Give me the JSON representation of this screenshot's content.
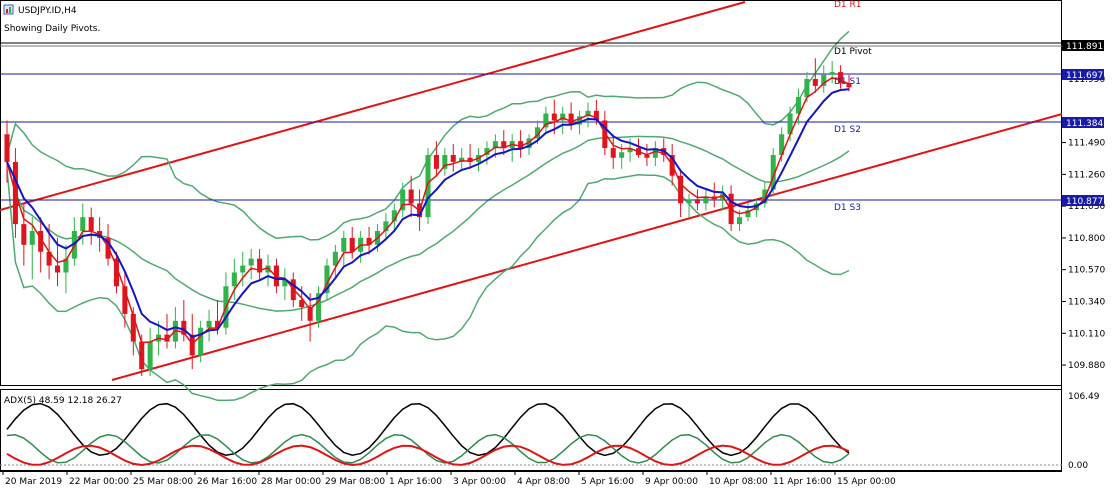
{
  "window": {
    "symbol_title": "USDJPY.ID,H4",
    "indicator_note": "Showing Daily Pivots.",
    "icon": "chart-window-icon"
  },
  "pivot_labels": {
    "top_partial": "D1 R1",
    "pivot": "D1 Pivot",
    "s1": "D1 S1",
    "s2": "D1 S2",
    "s3": "D1 S3"
  },
  "price_scale": {
    "labels": [
      "111.950",
      "111.490",
      "111.260",
      "111.030",
      "110.800",
      "110.570",
      "110.340",
      "110.110",
      "109.880"
    ],
    "current_price": "111.891",
    "pivot_tags": {
      "s1": "111.697",
      "s2": "111.384",
      "s3": "110.877"
    },
    "range": [
      109.75,
      112.5
    ]
  },
  "time_axis": {
    "labels": [
      "20 Mar 2019",
      "22 Mar 00:00",
      "25 Mar 08:00",
      "26 Mar 16:00",
      "28 Mar 00:00",
      "29 Mar 08:00",
      "1 Apr 16:00",
      "3 Apr 00:00",
      "4 Apr 08:00",
      "5 Apr 16:00",
      "9 Apr 00:00",
      "10 Apr 08:00",
      "11 Apr 16:00",
      "15 Apr 00:00"
    ]
  },
  "adx_panel": {
    "label": "ADX(5) 48.59 12.18 26.27",
    "scale_top": "106.49",
    "scale_bottom": "0.00",
    "range": [
      0,
      106.49
    ]
  },
  "colors": {
    "bull_candle": "#2fb34a",
    "bear_candle": "#e0141c",
    "channel": "#e01414",
    "bollinger": "#4faa72",
    "ma_fast": "#e01414",
    "ma_slow": "#1515c8",
    "pivot_line": "#1a1aa8",
    "price_tag_bg": "#1a1aa8",
    "current_tag_bg": "#000000",
    "adx_line": "#000000",
    "plus_di": "#2f8a4f",
    "minus_di": "#e01414"
  },
  "chart_data": {
    "type": "candlestick",
    "symbol": "USDJPY.ID",
    "timeframe": "H4",
    "candles": [
      [
        111.55,
        111.65,
        111.2,
        111.35
      ],
      [
        111.35,
        111.45,
        110.8,
        110.9
      ],
      [
        110.9,
        111.05,
        110.6,
        110.75
      ],
      [
        110.75,
        110.95,
        110.5,
        110.85
      ],
      [
        110.85,
        110.95,
        110.55,
        110.7
      ],
      [
        110.7,
        110.9,
        110.5,
        110.6
      ],
      [
        110.6,
        110.8,
        110.45,
        110.55
      ],
      [
        110.55,
        110.75,
        110.4,
        110.65
      ],
      [
        110.65,
        110.95,
        110.6,
        110.85
      ],
      [
        110.85,
        111.05,
        110.75,
        110.95
      ],
      [
        110.95,
        111.02,
        110.75,
        110.85
      ],
      [
        110.85,
        110.95,
        110.7,
        110.8
      ],
      [
        110.8,
        110.9,
        110.6,
        110.65
      ],
      [
        110.65,
        110.7,
        110.4,
        110.45
      ],
      [
        110.45,
        110.55,
        110.15,
        110.25
      ],
      [
        110.25,
        110.3,
        109.95,
        110.05
      ],
      [
        110.05,
        110.1,
        109.8,
        109.85
      ],
      [
        109.85,
        110.15,
        109.8,
        110.05
      ],
      [
        110.05,
        110.2,
        109.95,
        110.1
      ],
      [
        110.1,
        110.25,
        110.0,
        110.05
      ],
      [
        110.05,
        110.3,
        110.0,
        110.2
      ],
      [
        110.2,
        110.35,
        110.05,
        110.1
      ],
      [
        110.1,
        110.25,
        109.85,
        109.95
      ],
      [
        109.95,
        110.2,
        109.9,
        110.15
      ],
      [
        110.15,
        110.28,
        110.05,
        110.2
      ],
      [
        110.2,
        110.35,
        110.1,
        110.15
      ],
      [
        110.15,
        110.55,
        110.1,
        110.45
      ],
      [
        110.45,
        110.65,
        110.35,
        110.55
      ],
      [
        110.55,
        110.7,
        110.45,
        110.6
      ],
      [
        110.6,
        110.72,
        110.5,
        110.65
      ],
      [
        110.65,
        110.72,
        110.5,
        110.55
      ],
      [
        110.55,
        110.68,
        110.45,
        110.6
      ],
      [
        110.6,
        110.65,
        110.4,
        110.45
      ],
      [
        110.45,
        110.58,
        110.35,
        110.5
      ],
      [
        110.5,
        110.55,
        110.3,
        110.35
      ],
      [
        110.35,
        110.45,
        110.2,
        110.3
      ],
      [
        110.3,
        110.4,
        110.05,
        110.2
      ],
      [
        110.2,
        110.45,
        110.15,
        110.4
      ],
      [
        110.4,
        110.65,
        110.35,
        110.6
      ],
      [
        110.6,
        110.75,
        110.5,
        110.7
      ],
      [
        110.7,
        110.85,
        110.6,
        110.8
      ],
      [
        110.8,
        110.88,
        110.65,
        110.7
      ],
      [
        110.7,
        110.85,
        110.62,
        110.8
      ],
      [
        110.8,
        110.88,
        110.68,
        110.75
      ],
      [
        110.75,
        110.9,
        110.7,
        110.85
      ],
      [
        110.85,
        110.98,
        110.78,
        110.92
      ],
      [
        110.92,
        111.05,
        110.85,
        111.0
      ],
      [
        111.0,
        111.2,
        110.95,
        111.15
      ],
      [
        111.15,
        111.25,
        110.95,
        111.05
      ],
      [
        111.05,
        111.15,
        110.85,
        110.95
      ],
      [
        110.95,
        111.45,
        110.9,
        111.4
      ],
      [
        111.4,
        111.5,
        111.25,
        111.3
      ],
      [
        111.3,
        111.45,
        111.25,
        111.4
      ],
      [
        111.4,
        111.48,
        111.28,
        111.35
      ],
      [
        111.35,
        111.45,
        111.3,
        111.38
      ],
      [
        111.38,
        111.48,
        111.3,
        111.35
      ],
      [
        111.35,
        111.45,
        111.28,
        111.4
      ],
      [
        111.4,
        111.5,
        111.33,
        111.45
      ],
      [
        111.45,
        111.55,
        111.38,
        111.5
      ],
      [
        111.5,
        111.58,
        111.4,
        111.45
      ],
      [
        111.45,
        111.55,
        111.35,
        111.5
      ],
      [
        111.5,
        111.58,
        111.38,
        111.45
      ],
      [
        111.45,
        111.55,
        111.4,
        111.52
      ],
      [
        111.52,
        111.65,
        111.48,
        111.6
      ],
      [
        111.6,
        111.75,
        111.55,
        111.7
      ],
      [
        111.7,
        111.8,
        111.55,
        111.65
      ],
      [
        111.65,
        111.75,
        111.55,
        111.7
      ],
      [
        111.7,
        111.78,
        111.58,
        111.62
      ],
      [
        111.62,
        111.72,
        111.55,
        111.68
      ],
      [
        111.68,
        111.78,
        111.6,
        111.72
      ],
      [
        111.72,
        111.8,
        111.62,
        111.65
      ],
      [
        111.65,
        111.72,
        111.4,
        111.45
      ],
      [
        111.45,
        111.55,
        111.3,
        111.38
      ],
      [
        111.38,
        111.48,
        111.3,
        111.42
      ],
      [
        111.42,
        111.52,
        111.35,
        111.45
      ],
      [
        111.45,
        111.52,
        111.38,
        111.4
      ],
      [
        111.4,
        111.48,
        111.32,
        111.38
      ],
      [
        111.38,
        111.5,
        111.32,
        111.45
      ],
      [
        111.45,
        111.52,
        111.35,
        111.4
      ],
      [
        111.4,
        111.48,
        111.18,
        111.25
      ],
      [
        111.25,
        111.3,
        110.95,
        111.05
      ],
      [
        111.05,
        111.12,
        110.95,
        111.08
      ],
      [
        111.08,
        111.15,
        111.0,
        111.05
      ],
      [
        111.05,
        111.15,
        111.0,
        111.1
      ],
      [
        111.1,
        111.2,
        111.02,
        111.08
      ],
      [
        111.08,
        111.18,
        111.0,
        111.12
      ],
      [
        111.12,
        111.18,
        110.85,
        110.9
      ],
      [
        110.9,
        111.0,
        110.85,
        110.95
      ],
      [
        110.95,
        111.05,
        110.92,
        111.0
      ],
      [
        111.0,
        111.08,
        110.95,
        111.05
      ],
      [
        111.05,
        111.2,
        111.02,
        111.15
      ],
      [
        111.15,
        111.45,
        111.1,
        111.4
      ],
      [
        111.4,
        111.6,
        111.35,
        111.55
      ],
      [
        111.55,
        111.75,
        111.5,
        111.7
      ],
      [
        111.7,
        111.88,
        111.62,
        111.82
      ],
      [
        111.82,
        112.0,
        111.78,
        111.95
      ],
      [
        111.95,
        112.1,
        111.85,
        111.9
      ],
      [
        111.9,
        112.05,
        111.85,
        111.98
      ],
      [
        111.98,
        112.08,
        111.92,
        112.0
      ],
      [
        112.0,
        112.05,
        111.88,
        111.92
      ],
      [
        111.92,
        111.98,
        111.86,
        111.89
      ]
    ]
  }
}
